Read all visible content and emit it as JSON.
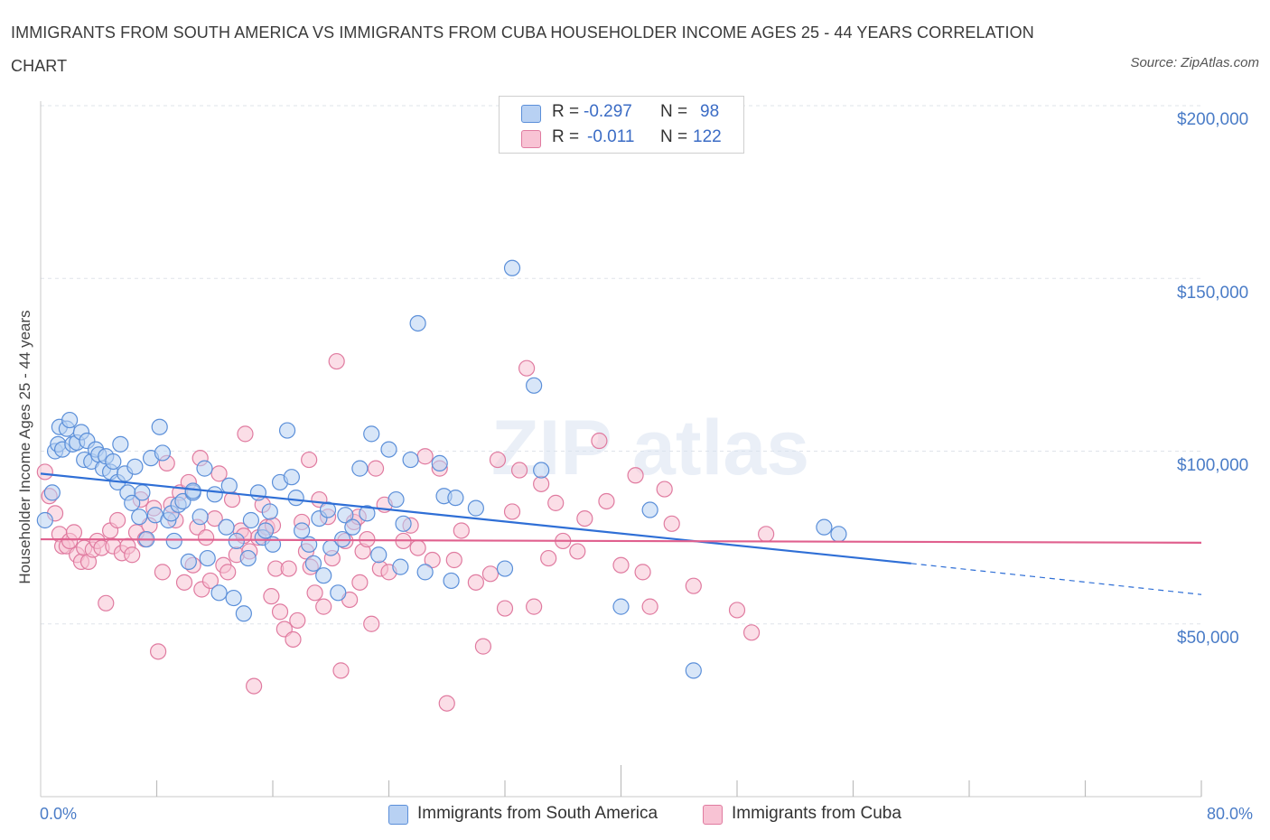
{
  "title": "IMMIGRANTS FROM SOUTH AMERICA VS IMMIGRANTS FROM CUBA HOUSEHOLDER INCOME AGES 25 - 44 YEARS CORRELATION CHART",
  "source": "Source: ZipAtlas.com",
  "watermark": "ZIPatlas",
  "colors": {
    "south_america_fill": "#b8d1f3",
    "south_america_stroke": "#5b8fd9",
    "south_america_line": "#2f6fd6",
    "cuba_fill": "#f8c3d4",
    "cuba_stroke": "#e07ba0",
    "cuba_line": "#e0608e",
    "axis_label": "#4a7cc7"
  },
  "stats": [
    {
      "r_label": "R =",
      "r_value": "-0.297",
      "n_label": "N =",
      "n_value": "98"
    },
    {
      "r_label": "R =",
      "r_value": "-0.011",
      "n_label": "N =",
      "n_value": "122"
    }
  ],
  "legend": [
    "Immigrants from South America",
    "Immigrants from Cuba"
  ],
  "chart_data": {
    "type": "scatter",
    "title": "IMMIGRANTS FROM SOUTH AMERICA VS IMMIGRANTS FROM CUBA HOUSEHOLDER INCOME AGES 25 - 44 YEARS CORRELATION CHART",
    "xlabel": "",
    "ylabel": "Householder Income Ages 25 - 44 years",
    "xlim": [
      0,
      80
    ],
    "ylim": [
      0,
      200000
    ],
    "x_tick_labels": [
      "0.0%",
      "80.0%"
    ],
    "y_tick_labels": [
      "$50,000",
      "$100,000",
      "$150,000",
      "$200,000"
    ],
    "y_ticks": [
      50000,
      100000,
      150000,
      200000
    ],
    "grid": true,
    "legend_position": "bottom-center",
    "series": [
      {
        "name": "Immigrants from South America",
        "trend": {
          "x": [
            0,
            60
          ],
          "y": [
            93500,
            67500
          ],
          "dashed_to": [
            80,
            58500
          ]
        },
        "points": [
          [
            0.3,
            80000
          ],
          [
            0.8,
            88000
          ],
          [
            1.0,
            100000
          ],
          [
            1.2,
            102000
          ],
          [
            1.3,
            107000
          ],
          [
            1.5,
            100500
          ],
          [
            1.8,
            106500
          ],
          [
            2.0,
            109000
          ],
          [
            2.2,
            102000
          ],
          [
            2.5,
            102500
          ],
          [
            2.8,
            105500
          ],
          [
            3.0,
            97500
          ],
          [
            3.2,
            103000
          ],
          [
            3.5,
            97000
          ],
          [
            3.8,
            100500
          ],
          [
            4.0,
            99000
          ],
          [
            4.3,
            95000
          ],
          [
            4.5,
            98500
          ],
          [
            4.8,
            94000
          ],
          [
            5.0,
            97000
          ],
          [
            5.3,
            91000
          ],
          [
            5.5,
            102000
          ],
          [
            5.8,
            93500
          ],
          [
            6.0,
            88000
          ],
          [
            6.3,
            85000
          ],
          [
            6.5,
            95500
          ],
          [
            6.8,
            81000
          ],
          [
            7.0,
            88000
          ],
          [
            7.3,
            74500
          ],
          [
            7.6,
            98000
          ],
          [
            7.9,
            81500
          ],
          [
            8.2,
            107000
          ],
          [
            8.4,
            99500
          ],
          [
            8.8,
            80000
          ],
          [
            9.0,
            82000
          ],
          [
            9.2,
            74000
          ],
          [
            9.5,
            84500
          ],
          [
            9.8,
            85500
          ],
          [
            10.2,
            68000
          ],
          [
            10.5,
            88000
          ],
          [
            11.0,
            81000
          ],
          [
            11.3,
            95000
          ],
          [
            11.5,
            69000
          ],
          [
            12.0,
            87500
          ],
          [
            12.3,
            59000
          ],
          [
            12.8,
            78000
          ],
          [
            13.0,
            90000
          ],
          [
            13.3,
            57500
          ],
          [
            13.5,
            74000
          ],
          [
            14.0,
            53000
          ],
          [
            14.3,
            69000
          ],
          [
            14.5,
            80000
          ],
          [
            15.0,
            88000
          ],
          [
            15.3,
            75000
          ],
          [
            15.5,
            77000
          ],
          [
            15.8,
            82500
          ],
          [
            16.0,
            73000
          ],
          [
            16.5,
            91000
          ],
          [
            17.0,
            106000
          ],
          [
            17.3,
            92500
          ],
          [
            17.6,
            86500
          ],
          [
            18.0,
            77000
          ],
          [
            18.5,
            73000
          ],
          [
            18.8,
            67500
          ],
          [
            19.2,
            80500
          ],
          [
            19.5,
            64000
          ],
          [
            19.8,
            83000
          ],
          [
            20.0,
            72000
          ],
          [
            20.5,
            59000
          ],
          [
            20.8,
            74500
          ],
          [
            21.0,
            81500
          ],
          [
            21.5,
            78000
          ],
          [
            22.0,
            95000
          ],
          [
            22.5,
            82000
          ],
          [
            22.8,
            105000
          ],
          [
            23.3,
            70000
          ],
          [
            24.0,
            100500
          ],
          [
            24.5,
            86000
          ],
          [
            24.8,
            66500
          ],
          [
            25.0,
            79000
          ],
          [
            25.5,
            97500
          ],
          [
            26.5,
            65000
          ],
          [
            27.5,
            96500
          ],
          [
            27.8,
            87000
          ],
          [
            28.3,
            62500
          ],
          [
            28.6,
            86500
          ],
          [
            30.0,
            83500
          ],
          [
            32.0,
            66000
          ],
          [
            32.5,
            153000
          ],
          [
            26.0,
            137000
          ],
          [
            34.0,
            119000
          ],
          [
            34.5,
            94500
          ],
          [
            40.0,
            55000
          ],
          [
            42.0,
            83000
          ],
          [
            45.0,
            36500
          ],
          [
            54.0,
            78000
          ],
          [
            55.0,
            76000
          ],
          [
            10.5,
            88500
          ]
        ]
      },
      {
        "name": "Immigrants from Cuba",
        "trend": {
          "x": [
            0,
            80
          ],
          "y": [
            74500,
            73500
          ]
        },
        "points": [
          [
            0.3,
            94000
          ],
          [
            0.6,
            87000
          ],
          [
            1.0,
            82000
          ],
          [
            1.3,
            76000
          ],
          [
            1.5,
            72500
          ],
          [
            1.8,
            72500
          ],
          [
            2.0,
            74000
          ],
          [
            2.3,
            76500
          ],
          [
            2.5,
            70000
          ],
          [
            2.8,
            68000
          ],
          [
            3.0,
            72000
          ],
          [
            3.3,
            68000
          ],
          [
            3.6,
            71500
          ],
          [
            3.9,
            74000
          ],
          [
            4.2,
            72000
          ],
          [
            4.5,
            56000
          ],
          [
            4.8,
            77000
          ],
          [
            5.0,
            72500
          ],
          [
            5.3,
            80000
          ],
          [
            5.6,
            70500
          ],
          [
            6.0,
            72500
          ],
          [
            6.3,
            70000
          ],
          [
            6.6,
            76500
          ],
          [
            6.9,
            86000
          ],
          [
            7.2,
            74500
          ],
          [
            7.5,
            78500
          ],
          [
            7.8,
            83500
          ],
          [
            8.1,
            42000
          ],
          [
            8.4,
            65000
          ],
          [
            8.7,
            96500
          ],
          [
            9.0,
            84500
          ],
          [
            9.3,
            80000
          ],
          [
            9.6,
            88000
          ],
          [
            9.9,
            62000
          ],
          [
            10.2,
            91000
          ],
          [
            10.5,
            67000
          ],
          [
            10.8,
            78000
          ],
          [
            11.1,
            60000
          ],
          [
            11.4,
            75000
          ],
          [
            11.7,
            62500
          ],
          [
            12.0,
            80500
          ],
          [
            12.3,
            93500
          ],
          [
            12.6,
            67000
          ],
          [
            12.9,
            65000
          ],
          [
            13.2,
            86000
          ],
          [
            13.5,
            70000
          ],
          [
            13.8,
            77000
          ],
          [
            14.1,
            105000
          ],
          [
            14.4,
            71000
          ],
          [
            14.7,
            32000
          ],
          [
            15.0,
            75000
          ],
          [
            15.3,
            84500
          ],
          [
            15.6,
            78000
          ],
          [
            15.9,
            58000
          ],
          [
            16.2,
            66000
          ],
          [
            16.5,
            53500
          ],
          [
            16.8,
            48500
          ],
          [
            17.1,
            66000
          ],
          [
            17.4,
            45500
          ],
          [
            17.7,
            51000
          ],
          [
            18.0,
            79500
          ],
          [
            18.3,
            71000
          ],
          [
            18.6,
            66500
          ],
          [
            18.9,
            59000
          ],
          [
            19.2,
            86000
          ],
          [
            19.5,
            55000
          ],
          [
            19.8,
            81000
          ],
          [
            20.1,
            69000
          ],
          [
            20.4,
            126000
          ],
          [
            20.7,
            36500
          ],
          [
            21.0,
            74000
          ],
          [
            21.3,
            57000
          ],
          [
            21.6,
            79500
          ],
          [
            21.9,
            81000
          ],
          [
            22.2,
            71000
          ],
          [
            22.5,
            74500
          ],
          [
            22.8,
            50000
          ],
          [
            23.1,
            95000
          ],
          [
            23.4,
            66000
          ],
          [
            23.7,
            84500
          ],
          [
            24.0,
            65000
          ],
          [
            25.0,
            74000
          ],
          [
            25.5,
            78500
          ],
          [
            26.0,
            72000
          ],
          [
            26.5,
            98500
          ],
          [
            27.0,
            68500
          ],
          [
            27.5,
            95000
          ],
          [
            28.0,
            27000
          ],
          [
            28.5,
            68500
          ],
          [
            29.0,
            77000
          ],
          [
            30.0,
            62000
          ],
          [
            30.5,
            43500
          ],
          [
            31.0,
            64500
          ],
          [
            31.5,
            97500
          ],
          [
            32.0,
            54500
          ],
          [
            32.5,
            82500
          ],
          [
            33.0,
            94500
          ],
          [
            33.5,
            124000
          ],
          [
            34.0,
            55000
          ],
          [
            34.5,
            90500
          ],
          [
            35.0,
            69000
          ],
          [
            35.5,
            85000
          ],
          [
            36.0,
            74000
          ],
          [
            37.0,
            71000
          ],
          [
            37.5,
            80500
          ],
          [
            38.5,
            103000
          ],
          [
            39.0,
            85500
          ],
          [
            40.0,
            67000
          ],
          [
            41.0,
            93000
          ],
          [
            41.5,
            65000
          ],
          [
            42.0,
            55000
          ],
          [
            43.0,
            89000
          ],
          [
            43.5,
            79000
          ],
          [
            45.0,
            61000
          ],
          [
            48.0,
            54000
          ],
          [
            49.0,
            47500
          ],
          [
            50.0,
            76000
          ],
          [
            11.0,
            98000
          ],
          [
            14.0,
            75500
          ],
          [
            16.0,
            78500
          ],
          [
            18.5,
            97500
          ],
          [
            22.0,
            62000
          ]
        ]
      }
    ]
  }
}
